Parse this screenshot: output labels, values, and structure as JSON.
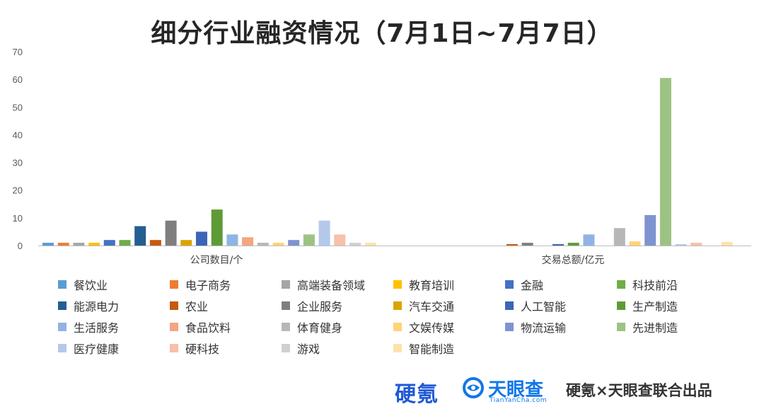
{
  "title": "细分行业融资情况（7月1日~7月7日）",
  "chart_data": {
    "type": "bar",
    "categories": [
      "公司数目/个",
      "交易总额/亿元"
    ],
    "ylim": [
      0,
      70
    ],
    "yticks": [
      0,
      10,
      20,
      30,
      40,
      50,
      60,
      70
    ],
    "grid": false,
    "legend_position": "bottom",
    "series": [
      {
        "name": "餐饮业",
        "color": "#5b9bd5",
        "values": [
          1,
          0
        ]
      },
      {
        "name": "电子商务",
        "color": "#ed7d31",
        "values": [
          1,
          0
        ]
      },
      {
        "name": "高端装备领域",
        "color": "#a5a5a5",
        "values": [
          1,
          0
        ]
      },
      {
        "name": "教育培训",
        "color": "#ffc000",
        "values": [
          1,
          0
        ]
      },
      {
        "name": "金融",
        "color": "#4472c4",
        "values": [
          2,
          0
        ]
      },
      {
        "name": "科技前沿",
        "color": "#70ad47",
        "values": [
          2,
          0
        ]
      },
      {
        "name": "能源电力",
        "color": "#255e91",
        "values": [
          7,
          0
        ]
      },
      {
        "name": "农业",
        "color": "#c55a11",
        "values": [
          2,
          0.5
        ]
      },
      {
        "name": "企业服务",
        "color": "#7f7f7f",
        "values": [
          9,
          1
        ]
      },
      {
        "name": "汽车交通",
        "color": "#dba400",
        "values": [
          2,
          0
        ]
      },
      {
        "name": "人工智能",
        "color": "#3a65b9",
        "values": [
          5,
          0.5
        ]
      },
      {
        "name": "生产制造",
        "color": "#5e9b37",
        "values": [
          13,
          1
        ]
      },
      {
        "name": "生活服务",
        "color": "#8fb4e3",
        "values": [
          4,
          4
        ]
      },
      {
        "name": "食品饮料",
        "color": "#f4a582",
        "values": [
          3,
          0
        ]
      },
      {
        "name": "体育健身",
        "color": "#b7b7b7",
        "values": [
          1,
          6.3
        ]
      },
      {
        "name": "文娱传媒",
        "color": "#ffd378",
        "values": [
          1,
          1.5
        ]
      },
      {
        "name": "物流运输",
        "color": "#7e94d0",
        "values": [
          2,
          11
        ]
      },
      {
        "name": "先进制造",
        "color": "#9dc383",
        "values": [
          4,
          60.5
        ]
      },
      {
        "name": "医疗健康",
        "color": "#b4c9ea",
        "values": [
          9,
          0.5
        ]
      },
      {
        "name": "硬科技",
        "color": "#f7c0a8",
        "values": [
          4,
          1
        ]
      },
      {
        "name": "游戏",
        "color": "#d0d0d0",
        "values": [
          1,
          0
        ]
      },
      {
        "name": "智能制造",
        "color": "#ffe2ab",
        "values": [
          1,
          1.3
        ]
      }
    ]
  },
  "footer": {
    "logo_ying": "硬氪",
    "logo_tyc": "天眼查",
    "logo_tyc_sub": "TianYanCha.com",
    "credit": "硬氪×天眼查联合出品",
    "tyc_color": "#1176e8",
    "ying_color": "#1e5ad6"
  }
}
